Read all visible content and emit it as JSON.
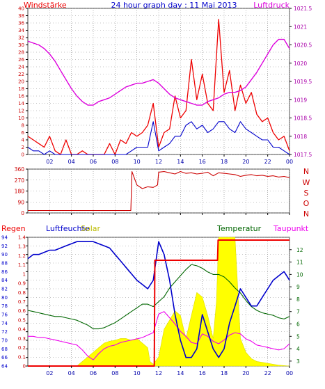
{
  "header": {
    "title": "24 hour graph day : 11 Mai 2013",
    "left_label": "Windstärke",
    "right_label": "Luftdruck"
  },
  "direction_labels": [
    "N",
    "W",
    "S",
    "O",
    "N"
  ],
  "bottom_labels": {
    "rain": "Regen",
    "humidity": "Luftfeuchte",
    "solar": "Solar",
    "temperature": "Temperatur",
    "dewpoint": "Taupunkt"
  },
  "colors": {
    "wind": "#ee0000",
    "gust_avg": "#0000cc",
    "pressure": "#dd00dd",
    "direction": "#cc0000",
    "rain": "#ee0000",
    "humidity": "#0000cc",
    "solar": "#ffff00",
    "temperature": "#006600",
    "dewpoint": "#ee00ee",
    "frame": "#444444",
    "grid": "#888888"
  },
  "chart_data": [
    {
      "id": "wind",
      "type": "line",
      "x_ticks": [
        "02",
        "04",
        "06",
        "08",
        "10",
        "12",
        "14",
        "16",
        "18",
        "20",
        "22",
        "00"
      ],
      "x_tick_hours": [
        2,
        4,
        6,
        8,
        10,
        12,
        14,
        16,
        18,
        20,
        22,
        24
      ],
      "xlim": [
        0,
        24
      ],
      "ylim": [
        0,
        40
      ],
      "y_ticks": [
        0,
        2,
        4,
        6,
        8,
        10,
        12,
        14,
        16,
        18,
        20,
        22,
        24,
        26,
        28,
        30,
        32,
        34,
        36,
        38,
        40
      ],
      "y2lim": [
        1017.5,
        1021.5
      ],
      "y2_ticks": [
        1017.5,
        1018,
        1018.5,
        1019,
        1019.5,
        1020,
        1020.5,
        1021,
        1021.5
      ],
      "series": [
        {
          "role": "gust",
          "x": [
            0,
            0.5,
            1,
            1.5,
            2,
            2.5,
            3,
            3.5,
            4,
            4.5,
            5,
            5.5,
            6,
            6.5,
            7,
            7.5,
            8,
            8.5,
            9,
            9.5,
            10,
            10.5,
            11,
            11.5,
            12,
            12.5,
            13,
            13.5,
            14,
            14.5,
            15,
            15.5,
            16,
            16.5,
            17,
            17.5,
            18,
            18.5,
            19,
            19.5,
            20,
            20.5,
            21,
            21.5,
            22,
            22.5,
            23,
            23.5,
            24
          ],
          "values": [
            5,
            4,
            3,
            2,
            5,
            1,
            0,
            4,
            0,
            0,
            1,
            0,
            0,
            0,
            0,
            3,
            0,
            4,
            3,
            6,
            5,
            6,
            8,
            14,
            2,
            6,
            7,
            16,
            10,
            12,
            26,
            15,
            22,
            14,
            12,
            37,
            17,
            23,
            12,
            19,
            14,
            17,
            11,
            9,
            10,
            6,
            4,
            5,
            1
          ]
        },
        {
          "role": "average",
          "x": [
            0,
            0.5,
            1,
            1.5,
            2,
            2.5,
            3,
            3.5,
            4,
            4.5,
            5,
            5.5,
            6,
            6.5,
            7,
            7.5,
            8,
            8.5,
            9,
            9.5,
            10,
            10.5,
            11,
            11.5,
            12,
            12.5,
            13,
            13.5,
            14,
            14.5,
            15,
            15.5,
            16,
            16.5,
            17,
            17.5,
            18,
            18.5,
            19,
            19.5,
            20,
            20.5,
            21,
            21.5,
            22,
            22.5,
            23,
            23.5,
            24
          ],
          "values": [
            2,
            1,
            1,
            0,
            1,
            0,
            0,
            0,
            0,
            0,
            0,
            0,
            0,
            0,
            0,
            0,
            0,
            0,
            0,
            1,
            2,
            2,
            2,
            9,
            1,
            2,
            3,
            5,
            5,
            8,
            9,
            7,
            8,
            6,
            7,
            9,
            9,
            7,
            6,
            9,
            7,
            6,
            5,
            4,
            4,
            2,
            2,
            1,
            0
          ]
        },
        {
          "role": "pressure",
          "axis": "right",
          "x": [
            0,
            0.5,
            1,
            1.5,
            2,
            2.5,
            3,
            3.5,
            4,
            4.5,
            5,
            5.5,
            6,
            6.5,
            7,
            7.5,
            8,
            8.5,
            9,
            9.5,
            10,
            10.5,
            11,
            11.5,
            12,
            12.5,
            13,
            13.5,
            14,
            14.5,
            15,
            15.5,
            16,
            16.5,
            17,
            17.5,
            18,
            18.5,
            19,
            19.5,
            20,
            20.5,
            21,
            21.5,
            22,
            22.5,
            23,
            23.5,
            24
          ],
          "values": [
            1020.6,
            1020.55,
            1020.5,
            1020.4,
            1020.25,
            1020.05,
            1019.8,
            1019.55,
            1019.3,
            1019.1,
            1018.95,
            1018.85,
            1018.85,
            1018.95,
            1019.0,
            1019.05,
            1019.15,
            1019.25,
            1019.35,
            1019.4,
            1019.45,
            1019.45,
            1019.5,
            1019.55,
            1019.45,
            1019.3,
            1019.15,
            1019.05,
            1019.0,
            1018.95,
            1018.9,
            1018.85,
            1018.85,
            1018.95,
            1019.0,
            1019.05,
            1019.15,
            1019.2,
            1019.2,
            1019.25,
            1019.35,
            1019.55,
            1019.75,
            1020.0,
            1020.25,
            1020.5,
            1020.65,
            1020.65,
            1020.4
          ]
        }
      ]
    },
    {
      "id": "direction",
      "type": "line",
      "xlim": [
        0,
        24
      ],
      "ylim": [
        0,
        360
      ],
      "y_ticks": [
        0,
        90,
        180,
        270,
        360
      ],
      "series": [
        {
          "role": "wind direction",
          "x": [
            0,
            1,
            2,
            3,
            4,
            5,
            6,
            7,
            8,
            9,
            9.45,
            9.55,
            10,
            10.5,
            11,
            11.5,
            11.9,
            12,
            12.5,
            13,
            13.5,
            14,
            14.5,
            15,
            15.5,
            16,
            16.5,
            17,
            17.5,
            18,
            18.5,
            19,
            19.5,
            20,
            20.5,
            21,
            21.5,
            22,
            22.5,
            23,
            23.5,
            24
          ],
          "values": [
            20,
            20,
            20,
            20,
            20,
            20,
            20,
            20,
            20,
            20,
            20,
            340,
            230,
            200,
            215,
            210,
            230,
            335,
            340,
            330,
            320,
            340,
            325,
            330,
            320,
            325,
            335,
            305,
            330,
            325,
            320,
            315,
            300,
            310,
            315,
            305,
            310,
            300,
            305,
            295,
            300,
            290
          ]
        }
      ]
    },
    {
      "id": "climate",
      "type": "line",
      "xlim": [
        0,
        24
      ],
      "ylim": [
        64,
        94
      ],
      "y_ticks": [
        64,
        66,
        68,
        70,
        72,
        74,
        76,
        78,
        80,
        82,
        84,
        86,
        88,
        90,
        92,
        94
      ],
      "y2lim": [
        0,
        1.4
      ],
      "y2_ticks": [
        0,
        0.1,
        0.2,
        0.3,
        0.4,
        0.5,
        0.6,
        0.7,
        0.8,
        0.9,
        1,
        1.1,
        1.2,
        1.3,
        1.4
      ],
      "y3lim": [
        2.6,
        13
      ],
      "y3_ticks": [
        3,
        4,
        5,
        6,
        7,
        8,
        9,
        10,
        11,
        12
      ],
      "series": [
        {
          "role": "solar",
          "x": [
            0,
            4.5,
            5,
            5.5,
            6,
            6.5,
            7,
            7.5,
            8,
            8.5,
            9,
            9.5,
            10,
            10.5,
            11,
            11.2,
            11.5,
            12,
            12.5,
            13,
            13.5,
            14,
            14.5,
            15,
            15.5,
            16,
            16.5,
            17,
            17.3,
            17.5,
            17.8,
            18,
            18.5,
            19,
            19.5,
            20,
            20.5,
            21,
            21.5,
            22,
            22.5,
            23,
            24
          ],
          "values": [
            0,
            0,
            0.05,
            0.1,
            0.15,
            0.2,
            0.25,
            0.27,
            0.28,
            0.3,
            0.3,
            0.28,
            0.3,
            0.25,
            0.2,
            0.05,
            0.02,
            0.1,
            0.4,
            0.5,
            0.6,
            0.55,
            0.3,
            0.55,
            0.8,
            0.75,
            0.55,
            0.3,
            0.7,
            1.4,
            1.4,
            1.4,
            1.4,
            1.4,
            0.3,
            0.15,
            0.08,
            0.05,
            0.04,
            0.03,
            0.02,
            0.01,
            0
          ]
        },
        {
          "role": "rain",
          "axis": "right",
          "x": [
            0,
            11.6,
            11.65,
            17.4,
            17.45,
            24
          ],
          "values": [
            0,
            0,
            1.15,
            1.15,
            1.37,
            1.37
          ]
        },
        {
          "role": "humidity",
          "x": [
            0,
            0.5,
            1,
            1.5,
            2,
            2.5,
            3,
            3.5,
            4,
            4.5,
            5,
            5.5,
            6,
            6.5,
            7,
            7.5,
            8,
            8.5,
            9,
            9.5,
            10,
            10.5,
            11,
            11.5,
            12,
            12.5,
            13,
            13.5,
            14,
            14.5,
            15,
            15.5,
            16,
            16.5,
            17,
            17.5,
            18,
            18.5,
            19,
            19.5,
            20,
            20.5,
            21,
            21.5,
            22,
            22.5,
            23,
            23.5,
            24
          ],
          "values": [
            89,
            90,
            90,
            90.5,
            91,
            91,
            91.5,
            92,
            92.5,
            93,
            93,
            93,
            93,
            92.5,
            92,
            91.5,
            90,
            88.5,
            87,
            85.5,
            84,
            83,
            82,
            84,
            93,
            90,
            84,
            76,
            70,
            66,
            66,
            68,
            76,
            72,
            68,
            66,
            68,
            74,
            78,
            82,
            80,
            78,
            78,
            80,
            82,
            84,
            85,
            86,
            84
          ]
        },
        {
          "role": "temperature",
          "axis": "right2",
          "x": [
            0,
            0.5,
            1,
            1.5,
            2,
            2.5,
            3,
            3.5,
            4,
            4.5,
            5,
            5.5,
            6,
            6.5,
            7,
            7.5,
            8,
            8.5,
            9,
            9.5,
            10,
            10.5,
            11,
            11.5,
            12,
            12.5,
            13,
            13.5,
            14,
            14.5,
            15,
            15.5,
            16,
            16.5,
            17,
            17.5,
            18,
            18.5,
            19,
            19.5,
            20,
            20.5,
            21,
            21.5,
            22,
            22.5,
            23,
            23.5,
            24
          ],
          "values": [
            7.1,
            7.0,
            6.9,
            6.8,
            6.7,
            6.6,
            6.6,
            6.5,
            6.4,
            6.3,
            6.1,
            5.9,
            5.6,
            5.6,
            5.7,
            5.9,
            6.1,
            6.4,
            6.7,
            7.0,
            7.3,
            7.6,
            7.6,
            7.4,
            7.8,
            8.2,
            8.9,
            9.4,
            9.9,
            10.4,
            10.8,
            10.7,
            10.5,
            10.2,
            10.0,
            10.0,
            9.8,
            9.4,
            8.9,
            8.5,
            7.9,
            7.4,
            7.1,
            6.9,
            6.8,
            6.7,
            6.5,
            6.4,
            6.6
          ]
        },
        {
          "role": "dewpoint",
          "axis": "right2",
          "x": [
            0,
            0.5,
            1,
            1.5,
            2,
            2.5,
            3,
            3.5,
            4,
            4.5,
            5,
            5.5,
            6,
            6.5,
            7,
            7.5,
            8,
            8.5,
            9,
            9.5,
            10,
            10.5,
            11,
            11.5,
            12,
            12.5,
            13,
            13.5,
            14,
            14.5,
            15,
            15.5,
            16,
            16.5,
            17,
            17.5,
            18,
            18.5,
            19,
            19.5,
            20,
            20.5,
            21,
            21.5,
            22,
            22.5,
            23,
            23.5,
            24
          ],
          "values": [
            5.0,
            5.0,
            4.9,
            4.9,
            4.8,
            4.7,
            4.6,
            4.5,
            4.4,
            4.3,
            3.9,
            3.4,
            3.1,
            3.6,
            4.0,
            4.2,
            4.3,
            4.5,
            4.6,
            4.7,
            4.8,
            4.9,
            5.1,
            5.3,
            6.8,
            7.0,
            6.5,
            6.0,
            5.4,
            5.0,
            4.5,
            4.4,
            5.2,
            5.0,
            4.6,
            4.4,
            4.7,
            5.1,
            5.3,
            5.2,
            4.8,
            4.6,
            4.3,
            4.2,
            4.1,
            4.0,
            3.9,
            4.0,
            4.4
          ]
        }
      ]
    }
  ]
}
